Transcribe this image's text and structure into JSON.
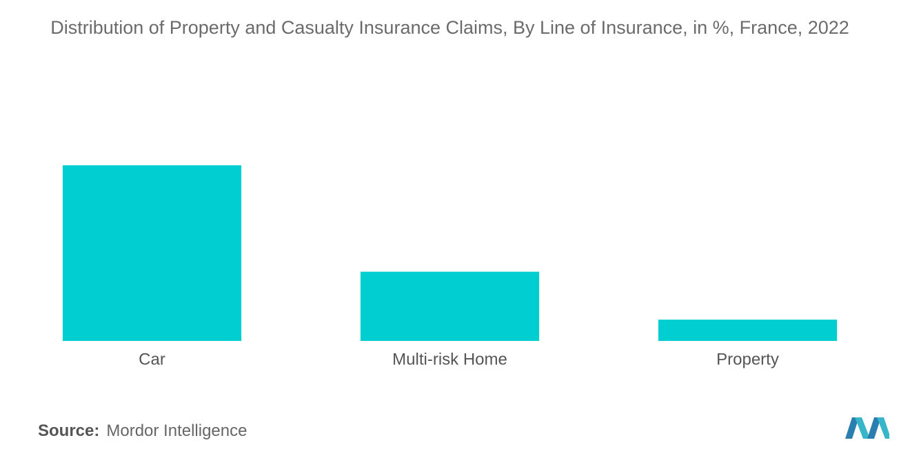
{
  "chart_data": {
    "type": "bar",
    "title": "Distribution of Property and Casualty Insurance Claims, By Line of Insurance, in %, France, 2022",
    "categories": [
      "Car",
      "Multi-risk Home",
      "Property"
    ],
    "values": [
      66,
      26,
      8
    ],
    "color": "#00ced1",
    "ylim": [
      0,
      66
    ]
  },
  "source": {
    "label": "Source:",
    "text": "Mordor Intelligence"
  }
}
